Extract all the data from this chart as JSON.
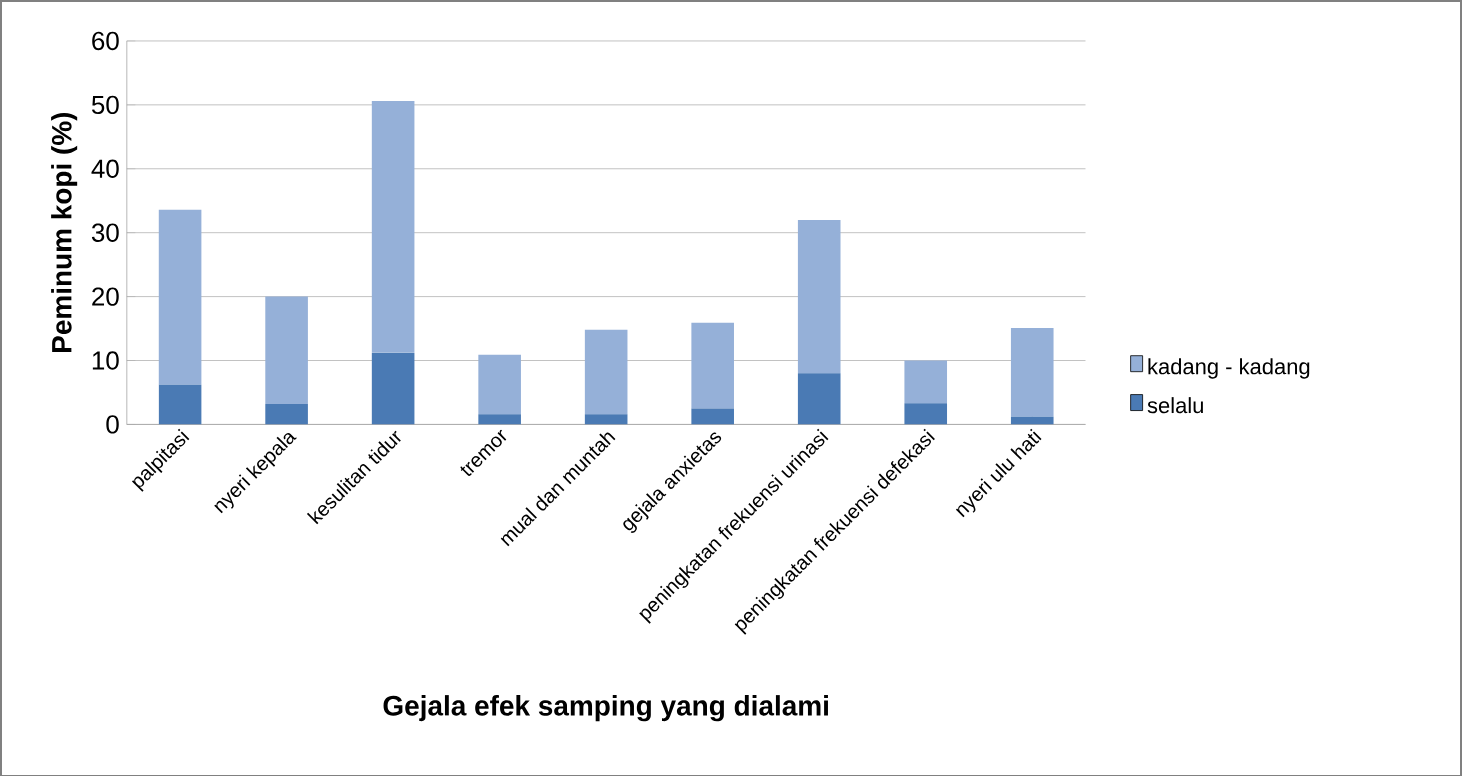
{
  "chart_data": {
    "type": "bar",
    "stacked": true,
    "xlabel": "Gejala efek samping yang dialami",
    "ylabel": "Peminum kopi (%)",
    "categories": [
      "palpitasi",
      "nyeri kepala",
      "kesulitan tidur",
      "tremor",
      "mual dan muntah",
      "gejala anxietas",
      "peningkatan frekuensi urinasi",
      "peningkatan frekuensi defekasi",
      "nyeri ulu hati"
    ],
    "series": [
      {
        "name": "selalu",
        "color": "#4a7ab4",
        "values": [
          6.2,
          3.2,
          11.2,
          1.6,
          1.6,
          2.5,
          8.0,
          3.3,
          1.2
        ]
      },
      {
        "name": "kadang - kadang",
        "color": "#95b0d8",
        "values": [
          27.4,
          16.8,
          39.4,
          9.3,
          13.2,
          13.4,
          24.0,
          6.7,
          13.9
        ]
      }
    ],
    "ylim": [
      0,
      60
    ],
    "yticks": [
      0,
      10,
      20,
      30,
      40,
      50,
      60
    ],
    "grid": "y",
    "legend": "right"
  }
}
